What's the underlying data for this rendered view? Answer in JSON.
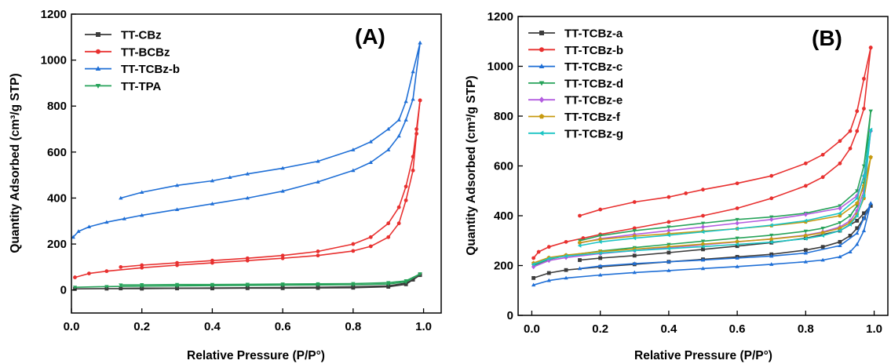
{
  "chart_data": [
    {
      "panel_label": "(A)",
      "type": "line",
      "xlabel": "Relative Pressure (P/P°)",
      "ylabel": "Quantity Adsorbed (cm³/g STP)",
      "xlim": [
        0,
        1.05
      ],
      "ylim": [
        -100,
        1200
      ],
      "xticks": [
        0.0,
        0.2,
        0.4,
        0.6,
        0.8,
        1.0
      ],
      "xtick_labels": [
        "0.0",
        "0.2",
        "0.4",
        "0.6",
        "0.8",
        "1.0"
      ],
      "yticks": [
        0,
        200,
        400,
        600,
        800,
        1000,
        1200
      ],
      "ytick_labels": [
        "0",
        "200",
        "400",
        "600",
        "800",
        "1000",
        "1200"
      ],
      "legend_position": "top-left",
      "grid": false,
      "series": [
        {
          "name": "TT-CBz",
          "color": "#3c3c3c",
          "marker": "square",
          "adsorption": {
            "x": [
              0.01,
              0.1,
              0.2,
              0.3,
              0.4,
              0.5,
              0.6,
              0.7,
              0.8,
              0.9,
              0.95,
              0.99
            ],
            "y": [
              5,
              6,
              6,
              7,
              7,
              8,
              8,
              9,
              10,
              14,
              25,
              65
            ]
          },
          "desorption": {
            "x": [
              0.99,
              0.97,
              0.95,
              0.9,
              0.8,
              0.7,
              0.6,
              0.5,
              0.4,
              0.3,
              0.2,
              0.14
            ],
            "y": [
              65,
              45,
              30,
              18,
              14,
              12,
              11,
              10,
              9,
              8,
              8,
              7
            ]
          }
        },
        {
          "name": "TT-BCBz",
          "color": "#e8302f",
          "marker": "circle",
          "adsorption": {
            "x": [
              0.01,
              0.05,
              0.1,
              0.2,
              0.3,
              0.4,
              0.5,
              0.6,
              0.7,
              0.8,
              0.85,
              0.9,
              0.93,
              0.95,
              0.97,
              0.98,
              0.99
            ],
            "y": [
              55,
              72,
              82,
              97,
              108,
              118,
              128,
              138,
              150,
              170,
              190,
              230,
              290,
              390,
              520,
              680,
              825
            ]
          },
          "desorption": {
            "x": [
              0.99,
              0.98,
              0.97,
              0.95,
              0.93,
              0.9,
              0.85,
              0.8,
              0.7,
              0.6,
              0.5,
              0.4,
              0.3,
              0.2,
              0.14
            ],
            "y": [
              825,
              700,
              580,
              450,
              360,
              290,
              230,
              200,
              168,
              150,
              138,
              128,
              118,
              108,
              100
            ]
          }
        },
        {
          "name": "TT-TCBz-b",
          "color": "#1f6fd6",
          "marker": "triangle",
          "adsorption": {
            "x": [
              0.005,
              0.02,
              0.05,
              0.1,
              0.15,
              0.2,
              0.3,
              0.4,
              0.5,
              0.6,
              0.7,
              0.8,
              0.85,
              0.9,
              0.93,
              0.95,
              0.97,
              0.99
            ],
            "y": [
              230,
              255,
              275,
              295,
              310,
              325,
              350,
              375,
              400,
              430,
              470,
              520,
              555,
              610,
              670,
              740,
              830,
              1075
            ]
          },
          "desorption": {
            "x": [
              0.99,
              0.97,
              0.95,
              0.93,
              0.9,
              0.85,
              0.8,
              0.7,
              0.6,
              0.5,
              0.45,
              0.4,
              0.3,
              0.2,
              0.14
            ],
            "y": [
              1075,
              950,
              820,
              740,
              700,
              645,
              610,
              560,
              530,
              505,
              490,
              475,
              455,
              425,
              400
            ]
          }
        },
        {
          "name": "TT-TPA",
          "color": "#27a35a",
          "marker": "triangle-down",
          "adsorption": {
            "x": [
              0.01,
              0.1,
              0.2,
              0.3,
              0.4,
              0.5,
              0.6,
              0.7,
              0.8,
              0.9,
              0.95,
              0.99
            ],
            "y": [
              12,
              15,
              17,
              18,
              19,
              20,
              21,
              22,
              23,
              26,
              35,
              70
            ]
          },
          "desorption": {
            "x": [
              0.99,
              0.95,
              0.9,
              0.8,
              0.7,
              0.6,
              0.5,
              0.4,
              0.3,
              0.2,
              0.14
            ],
            "y": [
              70,
              40,
              32,
              28,
              27,
              26,
              25,
              24,
              24,
              23,
              22
            ]
          }
        }
      ]
    },
    {
      "panel_label": "(B)",
      "type": "line",
      "xlabel": "Relative Pressure (P/P°)",
      "ylabel": "Quantity Adsorbed (cm³/g STP)",
      "xlim": [
        -0.04,
        1.04
      ],
      "ylim": [
        0,
        1200
      ],
      "xticks": [
        0.0,
        0.2,
        0.4,
        0.6,
        0.8,
        1.0
      ],
      "xtick_labels": [
        "0.0",
        "0.2",
        "0.4",
        "0.6",
        "0.8",
        "1.0"
      ],
      "yticks": [
        0,
        200,
        400,
        600,
        800,
        1000,
        1200
      ],
      "ytick_labels": [
        "0",
        "200",
        "400",
        "600",
        "800",
        "1000",
        "1200"
      ],
      "legend_position": "top-left",
      "grid": false,
      "series": [
        {
          "name": "TT-TCBz-a",
          "color": "#3c3c3c",
          "marker": "square",
          "adsorption": {
            "x": [
              0.005,
              0.05,
              0.1,
              0.2,
              0.3,
              0.4,
              0.5,
              0.6,
              0.7,
              0.8,
              0.85,
              0.9,
              0.93,
              0.95,
              0.97,
              0.99
            ],
            "y": [
              150,
              170,
              182,
              195,
              205,
              215,
              225,
              235,
              245,
              262,
              275,
              295,
              320,
              350,
              390,
              440
            ]
          },
          "desorption": {
            "x": [
              0.99,
              0.97,
              0.95,
              0.9,
              0.8,
              0.7,
              0.6,
              0.5,
              0.4,
              0.3,
              0.2,
              0.14
            ],
            "y": [
              440,
              410,
              380,
              340,
              310,
              292,
              278,
              265,
              252,
              240,
              230,
              222
            ]
          }
        },
        {
          "name": "TT-TCBz-b",
          "color": "#e8302f",
          "marker": "circle",
          "adsorption": {
            "x": [
              0.005,
              0.02,
              0.05,
              0.1,
              0.15,
              0.2,
              0.3,
              0.4,
              0.5,
              0.6,
              0.7,
              0.8,
              0.85,
              0.9,
              0.93,
              0.95,
              0.97,
              0.99
            ],
            "y": [
              230,
              255,
              275,
              295,
              310,
              325,
              350,
              375,
              400,
              430,
              470,
              520,
              555,
              610,
              670,
              740,
              830,
              1075
            ]
          },
          "desorption": {
            "x": [
              0.99,
              0.97,
              0.95,
              0.93,
              0.9,
              0.85,
              0.8,
              0.7,
              0.6,
              0.5,
              0.45,
              0.4,
              0.3,
              0.2,
              0.14
            ],
            "y": [
              1075,
              950,
              820,
              740,
              700,
              645,
              610,
              560,
              530,
              505,
              490,
              475,
              455,
              425,
              400
            ]
          }
        },
        {
          "name": "TT-TCBz-c",
          "color": "#1f6fd6",
          "marker": "triangle",
          "adsorption": {
            "x": [
              0.005,
              0.05,
              0.1,
              0.2,
              0.3,
              0.4,
              0.5,
              0.6,
              0.7,
              0.8,
              0.85,
              0.9,
              0.93,
              0.95,
              0.97,
              0.99
            ],
            "y": [
              122,
              140,
              150,
              162,
              172,
              180,
              188,
              196,
              205,
              215,
              222,
              235,
              255,
              285,
              340,
              450
            ]
          },
          "desorption": {
            "x": [
              0.99,
              0.97,
              0.95,
              0.9,
              0.8,
              0.7,
              0.6,
              0.5,
              0.4,
              0.3,
              0.2,
              0.14
            ],
            "y": [
              450,
              390,
              330,
              280,
              250,
              238,
              230,
              222,
              215,
              208,
              198,
              188
            ]
          }
        },
        {
          "name": "TT-TCBz-d",
          "color": "#27a35a",
          "marker": "triangle-down",
          "adsorption": {
            "x": [
              0.005,
              0.05,
              0.1,
              0.2,
              0.3,
              0.4,
              0.5,
              0.6,
              0.7,
              0.8,
              0.85,
              0.9,
              0.93,
              0.95,
              0.97,
              0.99
            ],
            "y": [
              200,
              225,
              240,
              258,
              272,
              285,
              298,
              310,
              322,
              338,
              350,
              372,
              400,
              440,
              530,
              820
            ]
          },
          "desorption": {
            "x": [
              0.99,
              0.97,
              0.95,
              0.9,
              0.8,
              0.7,
              0.6,
              0.5,
              0.4,
              0.3,
              0.2,
              0.14
            ],
            "y": [
              820,
              600,
              500,
              440,
              410,
              395,
              385,
              370,
              355,
              340,
              320,
              300
            ]
          }
        },
        {
          "name": "TT-TCBz-e",
          "color": "#b35de0",
          "marker": "diamond",
          "adsorption": {
            "x": [
              0.005,
              0.05,
              0.1,
              0.2,
              0.3,
              0.4,
              0.5,
              0.6,
              0.7,
              0.8,
              0.85,
              0.9,
              0.93,
              0.95,
              0.97,
              0.99
            ],
            "y": [
              195,
              220,
              232,
              248,
              260,
              272,
              283,
              295,
              307,
              322,
              335,
              355,
              380,
              420,
              500,
              740
            ]
          },
          "desorption": {
            "x": [
              0.99,
              0.97,
              0.95,
              0.9,
              0.8,
              0.7,
              0.6,
              0.5,
              0.4,
              0.3,
              0.2,
              0.14
            ],
            "y": [
              740,
              560,
              480,
              430,
              405,
              385,
              370,
              355,
              340,
              325,
              308,
              290
            ]
          }
        },
        {
          "name": "TT-TCBz-f",
          "color": "#c79a10",
          "marker": "pentagon",
          "adsorption": {
            "x": [
              0.005,
              0.05,
              0.1,
              0.2,
              0.3,
              0.4,
              0.5,
              0.6,
              0.7,
              0.8,
              0.85,
              0.9,
              0.93,
              0.95,
              0.97,
              0.99
            ],
            "y": [
              210,
              232,
              242,
              256,
              266,
              276,
              286,
              296,
              306,
              320,
              332,
              350,
              372,
              405,
              470,
              635
            ]
          },
          "desorption": {
            "x": [
              0.99,
              0.97,
              0.95,
              0.9,
              0.8,
              0.7,
              0.6,
              0.5,
              0.4,
              0.3,
              0.2,
              0.14
            ],
            "y": [
              635,
              520,
              450,
              400,
              375,
              360,
              348,
              338,
              328,
              318,
              305,
              292
            ]
          }
        },
        {
          "name": "TT-TCBz-g",
          "color": "#1cc4c4",
          "marker": "triangle-left",
          "adsorption": {
            "x": [
              0.005,
              0.05,
              0.1,
              0.2,
              0.3,
              0.4,
              0.5,
              0.6,
              0.7,
              0.8,
              0.85,
              0.9,
              0.93,
              0.95,
              0.97,
              0.99
            ],
            "y": [
              205,
              228,
              238,
              250,
              260,
              268,
              276,
              285,
              294,
              308,
              320,
              340,
              365,
              400,
              480,
              745
            ]
          },
          "desorption": {
            "x": [
              0.99,
              0.97,
              0.95,
              0.9,
              0.8,
              0.7,
              0.6,
              0.5,
              0.4,
              0.3,
              0.2,
              0.14
            ],
            "y": [
              745,
              560,
              470,
              410,
              380,
              362,
              348,
              335,
              322,
              310,
              295,
              280
            ]
          }
        }
      ]
    }
  ]
}
